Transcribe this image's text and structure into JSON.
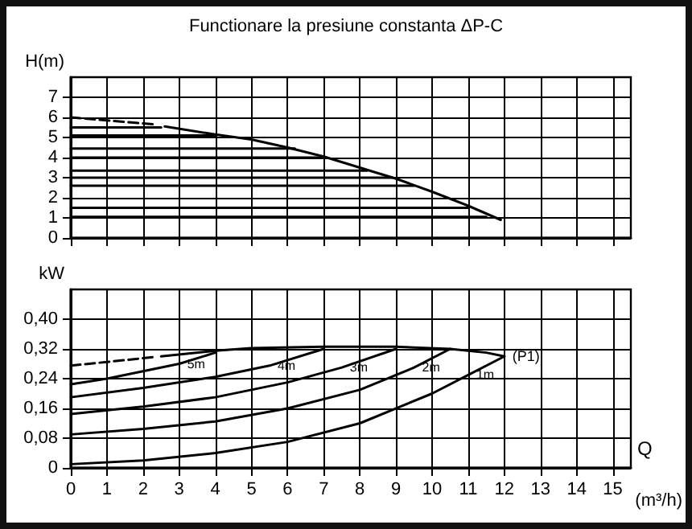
{
  "chart_data": [
    {
      "type": "line",
      "title": "Functionare la presiune constanta ΔP-C",
      "ylabel": "H(m)",
      "xlim": [
        0,
        15.5
      ],
      "xticks": [
        0,
        1,
        2,
        3,
        4,
        5,
        6,
        7,
        8,
        9,
        10,
        11,
        12,
        13,
        14,
        15
      ],
      "ylim": [
        0,
        8
      ],
      "yticks": [
        0,
        1,
        2,
        3,
        4,
        5,
        6,
        7
      ],
      "grid": true,
      "tick_labels": "y",
      "line_style": "solid",
      "series": [
        {
          "color": "#000000",
          "line_style": "dashed",
          "x": [
            0,
            2.3
          ],
          "values": [
            6.0,
            5.65
          ]
        },
        {
          "color": "#000000",
          "x": [
            2.6,
            4,
            5,
            6,
            7,
            8,
            9,
            10,
            11,
            11.9
          ],
          "values": [
            5.55,
            5.15,
            4.9,
            4.5,
            4.05,
            3.5,
            2.95,
            2.3,
            1.6,
            0.9
          ]
        },
        {
          "color": "#000000",
          "x": [
            0,
            2.5
          ],
          "values": [
            5.5,
            5.5
          ]
        },
        {
          "color": "#000000",
          "x": [
            0,
            4.0
          ],
          "values": [
            5.1,
            5.1
          ]
        },
        {
          "color": "#000000",
          "x": [
            0,
            6.2
          ],
          "values": [
            4.45,
            4.45
          ]
        },
        {
          "color": "#000000",
          "x": [
            0,
            7.0
          ],
          "values": [
            4.0,
            4.0
          ]
        },
        {
          "color": "#000000",
          "x": [
            0,
            8.2
          ],
          "values": [
            3.35,
            3.35
          ]
        },
        {
          "color": "#000000",
          "x": [
            0,
            8.9
          ],
          "values": [
            3.0,
            3.0
          ]
        },
        {
          "color": "#000000",
          "x": [
            0,
            9.5
          ],
          "values": [
            2.6,
            2.6
          ]
        },
        {
          "color": "#000000",
          "x": [
            0,
            11.0
          ],
          "values": [
            1.5,
            1.5
          ]
        },
        {
          "color": "#000000",
          "x": [
            0,
            11.5
          ],
          "values": [
            1.05,
            1.05
          ]
        }
      ]
    },
    {
      "type": "line",
      "ylabel": "kW",
      "xlabel": "Q",
      "xlim": [
        0,
        15.5
      ],
      "xticks": [
        0,
        1,
        2,
        3,
        4,
        5,
        6,
        7,
        8,
        9,
        10,
        11,
        12,
        13,
        14,
        15
      ],
      "ylim": [
        0,
        0.48
      ],
      "yticks": [
        0,
        {
          "value": 0.08,
          "label": "0,08"
        },
        {
          "value": 0.16,
          "label": "0,16"
        },
        {
          "value": 0.24,
          "label": "0,24"
        },
        {
          "value": 0.32,
          "label": "0,32"
        },
        {
          "value": 0.4,
          "label": "0,40"
        }
      ],
      "grid": true,
      "line_style": "solid",
      "series": [
        {
          "color": "#000000",
          "line_style": "dashed",
          "x": [
            0,
            2.3
          ],
          "values": [
            0.275,
            0.298
          ]
        },
        {
          "name": "(P1)",
          "color": "#000000",
          "x": [
            2.5,
            4,
            5,
            7,
            9,
            10.5,
            11.5,
            12
          ],
          "values": [
            0.3,
            0.315,
            0.322,
            0.326,
            0.326,
            0.32,
            0.31,
            0.3
          ]
        },
        {
          "name": "5m",
          "color": "#000000",
          "x": [
            0,
            1,
            2,
            3,
            4
          ],
          "values": [
            0.225,
            0.24,
            0.26,
            0.28,
            0.31
          ]
        },
        {
          "name": "4m",
          "color": "#000000",
          "x": [
            0,
            2,
            4,
            5.5,
            7
          ],
          "values": [
            0.19,
            0.215,
            0.245,
            0.275,
            0.32
          ]
        },
        {
          "name": "3m",
          "color": "#000000",
          "x": [
            0,
            2,
            4,
            6,
            7.5,
            9
          ],
          "values": [
            0.145,
            0.165,
            0.19,
            0.23,
            0.27,
            0.32
          ]
        },
        {
          "name": "2m",
          "color": "#000000",
          "x": [
            0,
            2,
            4,
            6,
            8,
            9.5,
            10.5
          ],
          "values": [
            0.09,
            0.105,
            0.125,
            0.16,
            0.21,
            0.27,
            0.32
          ]
        },
        {
          "name": "1m",
          "color": "#000000",
          "x": [
            0,
            2,
            4,
            6,
            8,
            10,
            11,
            12
          ],
          "values": [
            0.01,
            0.02,
            0.04,
            0.07,
            0.12,
            0.2,
            0.25,
            0.3
          ]
        }
      ],
      "annotations": [
        "(m³/h)"
      ]
    }
  ]
}
